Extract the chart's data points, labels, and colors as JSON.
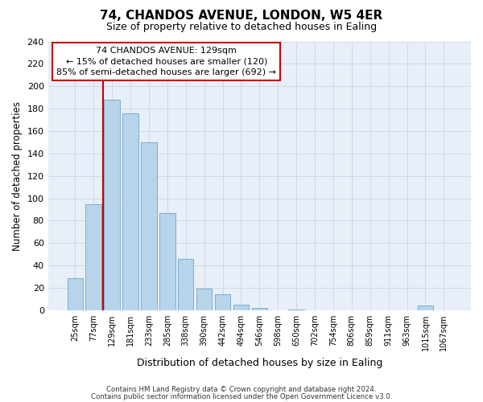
{
  "title": "74, CHANDOS AVENUE, LONDON, W5 4ER",
  "subtitle": "Size of property relative to detached houses in Ealing",
  "xlabel": "Distribution of detached houses by size in Ealing",
  "ylabel": "Number of detached properties",
  "bar_labels": [
    "25sqm",
    "77sqm",
    "129sqm",
    "181sqm",
    "233sqm",
    "285sqm",
    "338sqm",
    "390sqm",
    "442sqm",
    "494sqm",
    "546sqm",
    "598sqm",
    "650sqm",
    "702sqm",
    "754sqm",
    "806sqm",
    "859sqm",
    "911sqm",
    "963sqm",
    "1015sqm",
    "1067sqm"
  ],
  "bar_values": [
    29,
    95,
    188,
    176,
    150,
    87,
    46,
    19,
    14,
    5,
    2,
    0,
    1,
    0,
    0,
    0,
    0,
    0,
    0,
    4,
    0
  ],
  "highlight_index": 2,
  "bar_color": "#b8d4eb",
  "bar_edge_color": "#7aaed0",
  "highlight_line_color": "#cc0000",
  "bg_color": "#e8eff8",
  "ylim": [
    0,
    240
  ],
  "yticks": [
    0,
    20,
    40,
    60,
    80,
    100,
    120,
    140,
    160,
    180,
    200,
    220,
    240
  ],
  "annotation_title": "74 CHANDOS AVENUE: 129sqm",
  "annotation_line1": "← 15% of detached houses are smaller (120)",
  "annotation_line2": "85% of semi-detached houses are larger (692) →",
  "annotation_box_color": "#ffffff",
  "annotation_box_edge": "#cc0000",
  "footer1": "Contains HM Land Registry data © Crown copyright and database right 2024.",
  "footer2": "Contains public sector information licensed under the Open Government Licence v3.0."
}
